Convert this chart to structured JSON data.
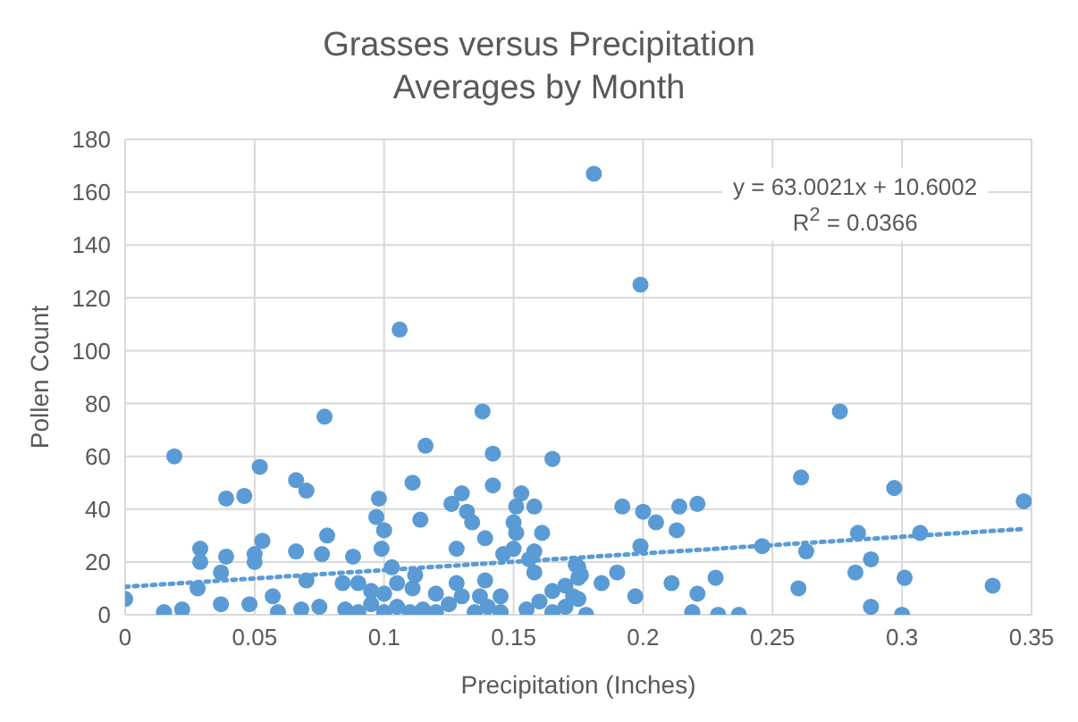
{
  "chart_data": {
    "type": "scatter",
    "title": "Grasses versus Precipitation",
    "subtitle": "Averages by Month",
    "xlabel": "Precipitation (Inches)",
    "ylabel": "Pollen Count",
    "xlim": [
      0,
      0.35
    ],
    "xticks": [
      0,
      0.05,
      0.1,
      0.15,
      0.2,
      0.25,
      0.3,
      0.35
    ],
    "ylim": [
      0,
      180
    ],
    "yticks": [
      0,
      20,
      40,
      60,
      80,
      100,
      120,
      140,
      160,
      180
    ],
    "grid": true,
    "annotations": [
      "y = 63.0021x + 10.6002",
      "R$^{2}$ = 0.0366"
    ],
    "series": [
      {
        "color": "#5b9bd5",
        "marker": "circle",
        "x": [
          0.181,
          0.199,
          0.106,
          0,
          0.019,
          0.039,
          0.046,
          0.052,
          0.077,
          0.066,
          0.07,
          0.029,
          0.029,
          0.039,
          0.037,
          0.05,
          0.05,
          0.053,
          0.066,
          0.078,
          0.076,
          0.028,
          0.015,
          0.022,
          0.037,
          0.048,
          0.057,
          0.059,
          0.07,
          0.068,
          0.075,
          0.084,
          0.138,
          0.116,
          0.142,
          0.165,
          0.111,
          0.142,
          0.098,
          0.097,
          0.1,
          0.099,
          0.114,
          0.126,
          0.13,
          0.132,
          0.134,
          0.139,
          0.153,
          0.151,
          0.158,
          0.15,
          0.151,
          0.15,
          0.146,
          0.161,
          0.158,
          0.156,
          0.158,
          0.128,
          0.088,
          0.103,
          0.174,
          0.175,
          0.112,
          0.111,
          0.128,
          0.13,
          0.139,
          0.137,
          0.145,
          0.085,
          0.09,
          0.095,
          0.1,
          0.105,
          0.11,
          0.115,
          0.12,
          0.125,
          0.135,
          0.14,
          0.155,
          0.16,
          0.165,
          0.17,
          0.175,
          0.09,
          0.095,
          0.1,
          0.105,
          0.12,
          0.145,
          0.165,
          0.17,
          0.276,
          0.261,
          0.297,
          0.347,
          0.192,
          0.2,
          0.205,
          0.214,
          0.221,
          0.213,
          0.199,
          0.246,
          0.263,
          0.283,
          0.307,
          0.288,
          0.282,
          0.19,
          0.184,
          0.211,
          0.228,
          0.221,
          0.197,
          0.26,
          0.301,
          0.335,
          0.219,
          0.229,
          0.237,
          0.288,
          0.3,
          0.178,
          0.175,
          0.176,
          0.173
        ],
        "values": [
          167,
          125,
          108,
          6,
          60,
          44,
          45,
          56,
          75,
          51,
          47,
          25,
          20,
          22,
          16,
          23,
          20,
          28,
          24,
          30,
          23,
          10,
          1,
          2,
          4,
          4,
          7,
          1,
          13,
          2,
          3,
          12,
          77,
          64,
          61,
          59,
          50,
          49,
          44,
          37,
          32,
          25,
          36,
          42,
          46,
          39,
          35,
          29,
          46,
          41,
          41,
          35,
          31,
          25,
          23,
          31,
          24,
          21,
          16,
          25,
          22,
          18,
          19,
          14,
          15,
          10,
          12,
          7,
          13,
          7,
          1,
          2,
          1,
          4,
          1,
          3,
          1,
          2,
          1,
          4,
          1,
          3,
          2,
          5,
          1,
          3,
          6,
          12,
          9,
          8,
          12,
          8,
          7,
          9,
          11,
          77,
          52,
          48,
          43,
          41,
          39,
          35,
          41,
          42,
          32,
          26,
          26,
          24,
          31,
          31,
          21,
          16,
          16,
          12,
          12,
          14,
          8,
          7,
          10,
          14,
          11,
          1,
          0,
          0,
          3,
          0,
          0,
          18,
          15,
          7
        ]
      },
      {
        "type": "line",
        "color": "#5b9bd5",
        "line_style": "dotted",
        "marker": "none",
        "x": [
          0,
          0.347
        ],
        "values": [
          10.6,
          32.5
        ]
      }
    ]
  }
}
